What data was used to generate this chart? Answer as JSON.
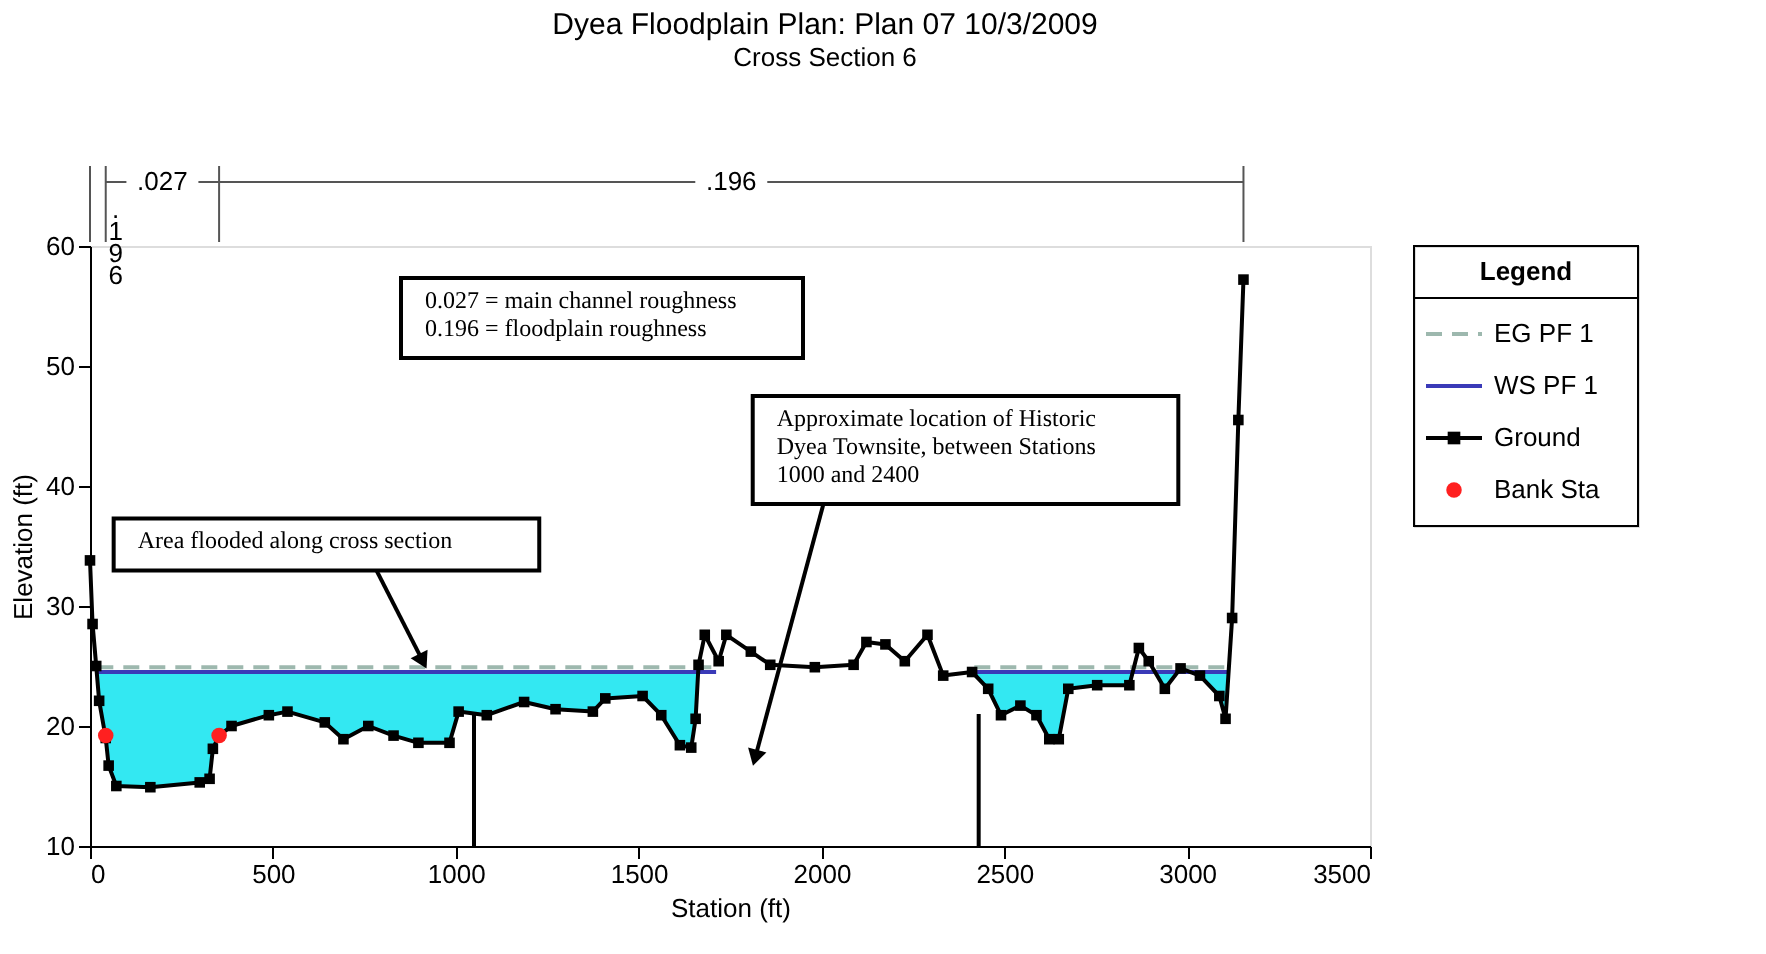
{
  "chart_data": {
    "type": "line",
    "title": "Dyea Floodplain      Plan: Plan 07      10/3/2009",
    "subtitle": "Cross Section 6",
    "xlabel": "Station (ft)",
    "ylabel": "Elevation (ft)",
    "legend_title": "Legend",
    "legend": "right",
    "grid": false,
    "xlim": [
      0,
      3500
    ],
    "ylim": [
      10,
      60
    ],
    "xticks": [
      0,
      500,
      1000,
      1500,
      2000,
      2500,
      3000,
      3500
    ],
    "yticks": [
      10,
      20,
      30,
      40,
      50,
      60
    ],
    "series": [
      {
        "type": "area",
        "color": "#33e8f2",
        "x": [
          20,
          25,
          43,
          51,
          72,
          165,
          300,
          327,
          336,
          353,
          387,
          489,
          540,
          642,
          693,
          761,
          830,
          898,
          983,
          1008,
          1085,
          1187,
          1273,
          1375,
          1409,
          1511,
          1562,
          1613,
          1644,
          1656,
          1662
        ],
        "values": [
          24.5,
          24.5,
          24.5,
          24.5,
          24.5,
          24.5,
          24.5,
          24.5,
          24.5,
          24.5,
          24.5,
          24.5,
          24.5,
          24.5,
          24.5,
          24.5,
          24.5,
          24.5,
          24.5,
          24.5,
          24.5,
          24.5,
          24.5,
          24.5,
          24.5,
          24.5,
          24.5,
          24.5,
          24.5,
          24.5,
          24.5
        ]
      },
      {
        "type": "area",
        "color": "#33e8f2",
        "x": [
          2418,
          2456,
          2491,
          2544,
          2588,
          2623,
          2649,
          2675,
          2754,
          2842,
          2850
        ],
        "values": [
          24.5,
          24.5,
          24.5,
          24.5,
          24.5,
          24.5,
          24.5,
          24.5,
          24.5,
          24.5,
          24.5
        ]
      },
      {
        "type": "area",
        "color": "#33e8f2",
        "x": [
          2915,
          2939,
          2970
        ],
        "values": [
          24.5,
          24.5,
          24.5
        ]
      },
      {
        "type": "area",
        "color": "#33e8f2",
        "x": [
          3020,
          3035,
          3088,
          3105,
          3112
        ],
        "values": [
          24.5,
          24.5,
          24.5,
          24.5,
          24.5
        ]
      },
      {
        "name": "EG PF 1",
        "color": "#9db8ae",
        "line_style": "dashed",
        "marker": "none",
        "x": [
          20,
          1712,
          1800,
          2418,
          3112
        ],
        "values": [
          24.9,
          24.9,
          null,
          24.9,
          24.9
        ]
      },
      {
        "name": "WS PF 1",
        "color": "#3a3ab8",
        "line_style": "solid",
        "marker": "none",
        "x": [
          20,
          1712,
          1800,
          2418,
          3112
        ],
        "values": [
          24.5,
          24.5,
          null,
          24.5,
          24.5
        ]
      },
      {
        "name": "Ground",
        "color": "#000000",
        "line_style": "solid",
        "marker": "square",
        "x": [
          0,
          7,
          17,
          25,
          43,
          51,
          72,
          165,
          300,
          327,
          336,
          353,
          387,
          489,
          540,
          642,
          693,
          761,
          830,
          898,
          983,
          1008,
          1085,
          1187,
          1273,
          1375,
          1409,
          1511,
          1562,
          1613,
          1644,
          1656,
          1664,
          1681,
          1719,
          1740,
          1807,
          1860,
          1982,
          2088,
          2123,
          2175,
          2228,
          2290,
          2333,
          2412,
          2456,
          2491,
          2544,
          2588,
          2623,
          2649,
          2675,
          2754,
          2842,
          2868,
          2895,
          2939,
          2982,
          3035,
          3088,
          3105,
          3123,
          3140,
          3154
        ],
        "values": [
          33.8,
          28.5,
          25,
          22.1,
          19,
          16.7,
          15,
          14.9,
          15.3,
          15.6,
          18.1,
          19.2,
          20,
          20.9,
          21.2,
          20.3,
          18.9,
          20,
          19.2,
          18.6,
          18.6,
          21.2,
          20.9,
          22,
          21.4,
          21.2,
          22.3,
          22.5,
          20.9,
          18.4,
          18.2,
          20.6,
          25.1,
          27.6,
          25.4,
          27.6,
          26.2,
          25.1,
          24.9,
          25.1,
          27,
          26.8,
          25.4,
          27.6,
          24.2,
          24.5,
          23.1,
          20.9,
          21.7,
          20.9,
          18.9,
          18.9,
          23.1,
          23.4,
          23.4,
          26.5,
          25.4,
          23.1,
          24.8,
          24.2,
          22.5,
          20.6,
          29,
          45.5,
          57.2
        ]
      },
      {
        "name": "Bank Sta",
        "type": "scatter",
        "color": "#ff2020",
        "marker": "circle",
        "x": [
          43,
          353
        ],
        "values": [
          19.2,
          19.2
        ]
      }
    ],
    "ref_lines": [
      {
        "axis": "x",
        "value": 1050,
        "color": "#000000"
      },
      {
        "axis": "x",
        "value": 2430,
        "color": "#000000"
      }
    ],
    "annotations": [
      ".196",
      ".027",
      ".196",
      "0.027 = main channel roughness\n0.196 = floodplain roughness",
      {
        "text": "Area flooded along cross section",
        "x": 920,
        "y": 24.8
      },
      "Approximate location of Historic\nDyea Townsite, between Stations\n1000 and 2400"
    ]
  }
}
